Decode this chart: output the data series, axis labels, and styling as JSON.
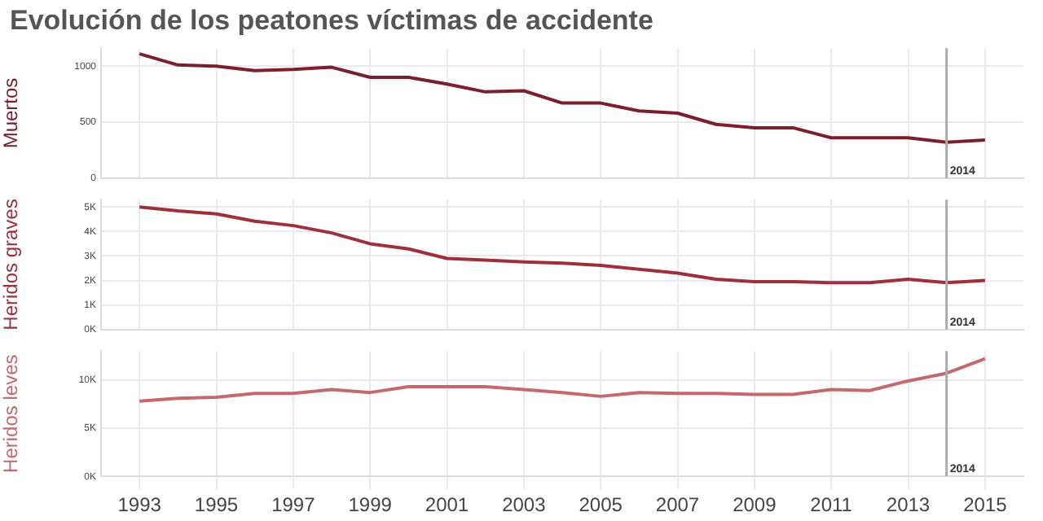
{
  "chart_data": [
    {
      "type": "line",
      "title": "Evolución de los peatones víctimas de accidente",
      "ylabel": "Muertos",
      "x": [
        1993,
        1994,
        1995,
        1996,
        1997,
        1998,
        1999,
        2000,
        2001,
        2002,
        2003,
        2004,
        2005,
        2006,
        2007,
        2008,
        2009,
        2010,
        2011,
        2012,
        2013,
        2014,
        2015
      ],
      "series": [
        {
          "color": "#7b1f2b",
          "values": [
            1110,
            1010,
            1000,
            960,
            970,
            990,
            900,
            900,
            840,
            770,
            780,
            670,
            670,
            600,
            580,
            480,
            450,
            450,
            360,
            360,
            360,
            320,
            340
          ]
        }
      ],
      "xlim": [
        1992,
        2016
      ],
      "xticks": [
        1993,
        1995,
        1997,
        1999,
        2001,
        2003,
        2005,
        2007,
        2009,
        2011,
        2013,
        2015
      ],
      "ylim": [
        0,
        1160
      ],
      "yticks": [
        0,
        500,
        1000
      ],
      "tick_labels": "y",
      "grid": true,
      "legend": false,
      "ref_lines": [
        {
          "axis": "x",
          "value": 2014,
          "label": "2014",
          "color": "#aaaaaa"
        }
      ]
    },
    {
      "type": "line",
      "ylabel": "Heridos graves",
      "x": [
        1993,
        1994,
        1995,
        1996,
        1997,
        1998,
        1999,
        2000,
        2001,
        2002,
        2003,
        2004,
        2005,
        2006,
        2007,
        2008,
        2009,
        2010,
        2011,
        2012,
        2013,
        2014,
        2015
      ],
      "series": [
        {
          "color": "#9e2f3b",
          "values": [
            5000,
            4840,
            4720,
            4420,
            4240,
            3940,
            3500,
            3290,
            2900,
            2830,
            2760,
            2710,
            2620,
            2460,
            2300,
            2050,
            1950,
            1950,
            1910,
            1910,
            2050,
            1910,
            2000
          ]
        }
      ],
      "xlim": [
        1992,
        2016
      ],
      "xticks": [
        1993,
        1995,
        1997,
        1999,
        2001,
        2003,
        2005,
        2007,
        2009,
        2011,
        2013,
        2015
      ],
      "ylim": [
        0,
        5300
      ],
      "yticks": [
        {
          "value": 0,
          "label": "0K"
        },
        {
          "value": 1000,
          "label": "1K"
        },
        {
          "value": 2000,
          "label": "2K"
        },
        {
          "value": 3000,
          "label": "3K"
        },
        {
          "value": 4000,
          "label": "4K"
        },
        {
          "value": 5000,
          "label": "5K"
        }
      ],
      "tick_labels": "y",
      "grid": true,
      "legend": false,
      "ref_lines": [
        {
          "axis": "x",
          "value": 2014,
          "label": "2014",
          "color": "#aaaaaa"
        }
      ]
    },
    {
      "type": "line",
      "ylabel": "Heridos leves",
      "x": [
        1993,
        1994,
        1995,
        1996,
        1997,
        1998,
        1999,
        2000,
        2001,
        2002,
        2003,
        2004,
        2005,
        2006,
        2007,
        2008,
        2009,
        2010,
        2011,
        2012,
        2013,
        2014,
        2015
      ],
      "series": [
        {
          "color": "#c46a6e",
          "values": [
            7800,
            8100,
            8200,
            8600,
            8600,
            9000,
            8700,
            9300,
            9300,
            9300,
            9000,
            8700,
            8300,
            8700,
            8600,
            8600,
            8500,
            8500,
            9000,
            8900,
            9900,
            10700,
            12200
          ]
        }
      ],
      "xlim": [
        1992,
        2016
      ],
      "xticks": [
        1993,
        1995,
        1997,
        1999,
        2001,
        2003,
        2005,
        2007,
        2009,
        2011,
        2013,
        2015
      ],
      "ylim": [
        0,
        13000
      ],
      "yticks": [
        {
          "value": 0,
          "label": "0K"
        },
        {
          "value": 5000,
          "label": "5K"
        },
        {
          "value": 10000,
          "label": "10K"
        }
      ],
      "grid": true,
      "legend": false,
      "ref_lines": [
        {
          "axis": "x",
          "value": 2014,
          "label": "2014",
          "color": "#aaaaaa"
        }
      ]
    }
  ]
}
